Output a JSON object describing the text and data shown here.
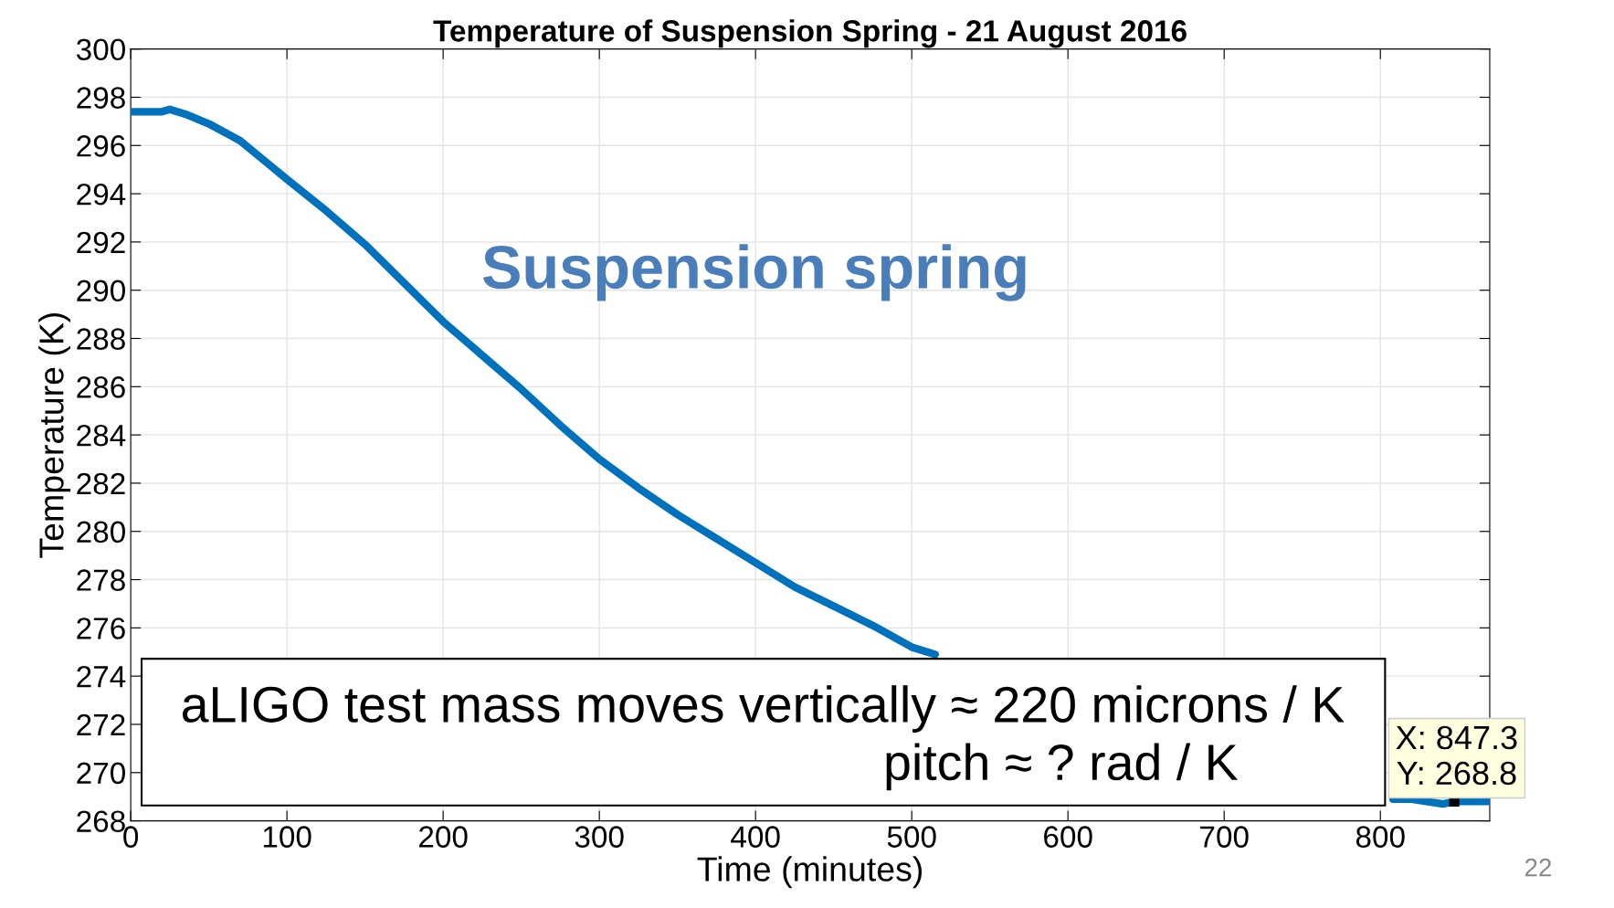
{
  "chart_data": {
    "type": "line",
    "title": "Temperature of Suspension Spring - 21 August 2016",
    "xlabel": "Time (minutes)",
    "ylabel": "Temperature (K)",
    "x": [
      0,
      10,
      20,
      25,
      35,
      50,
      70,
      85,
      100,
      125,
      150,
      175,
      200,
      225,
      250,
      275,
      300,
      325,
      350,
      375,
      400,
      425,
      450,
      475,
      500,
      515,
      530,
      800,
      808,
      820,
      840,
      847.3,
      860,
      870
    ],
    "series": [
      {
        "color": "#0072bd",
        "values": [
          297.4,
          297.4,
          297.4,
          297.5,
          297.3,
          296.9,
          296.2,
          295.4,
          294.6,
          293.3,
          291.9,
          290.3,
          288.7,
          287.3,
          285.9,
          284.4,
          283.0,
          281.8,
          280.7,
          279.7,
          278.7,
          277.7,
          276.9,
          276.1,
          275.2,
          274.9,
          null,
          null,
          268.9,
          268.9,
          268.7,
          268.8,
          268.8,
          268.8
        ]
      }
    ],
    "xlim": [
      0,
      870
    ],
    "xticks": [
      0,
      100,
      200,
      300,
      400,
      500,
      600,
      700,
      800
    ],
    "ylim": [
      268,
      300
    ],
    "yticks": [
      268,
      270,
      272,
      274,
      276,
      278,
      280,
      282,
      284,
      286,
      288,
      290,
      292,
      294,
      296,
      298,
      300
    ],
    "grid": true,
    "line_style": "solid",
    "marker": "none",
    "annotations": [
      "Suspension spring",
      "aLIGO test mass moves vertically ≈ 220 microns / K",
      "pitch ≈ ? rad / K",
      {
        "text": "X: 847.3\nY: 268.8",
        "x": 847.3,
        "y": 268.8
      },
      "22"
    ]
  }
}
